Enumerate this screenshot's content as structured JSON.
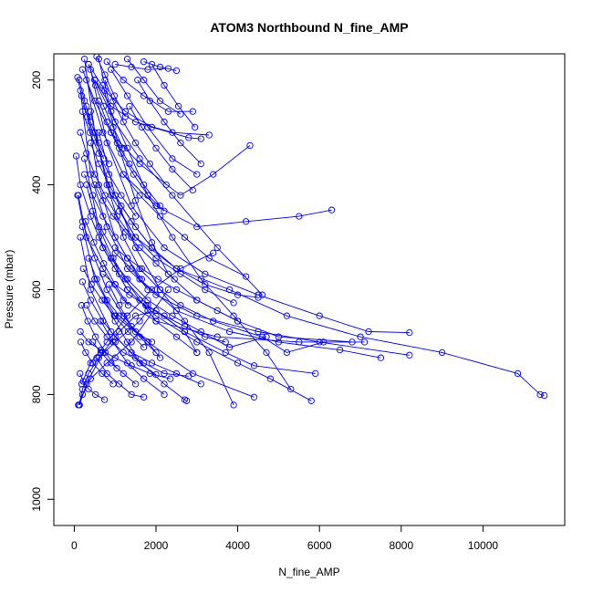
{
  "chart_data": {
    "type": "line",
    "title": "ATOM3 Northbound N_fine_AMP",
    "xlabel": "N_fine_AMP",
    "ylabel": "Pressure (mbar)",
    "xlim": [
      -500,
      12000
    ],
    "ylim": [
      1050,
      150
    ],
    "y_reversed": true,
    "x_ticks": [
      0,
      2000,
      4000,
      6000,
      8000,
      10000
    ],
    "y_ticks": [
      200,
      400,
      600,
      800,
      1000
    ],
    "grid": false,
    "legend": "none",
    "marker": "open-circle",
    "color": "#0000ff",
    "series": [
      {
        "x": [
          600,
          900,
          1300,
          1800,
          2400,
          3100,
          3900,
          4700,
          5300
        ],
        "y": [
          160,
          260,
          330,
          420,
          500,
          580,
          650,
          720,
          790
        ]
      },
      {
        "x": [
          200,
          500,
          900,
          1600,
          2600,
          3400,
          4300
        ],
        "y": [
          180,
          240,
          300,
          360,
          420,
          380,
          325
        ]
      },
      {
        "x": [
          300,
          700,
          1200,
          2000,
          3000,
          4200,
          5500,
          6300
        ],
        "y": [
          200,
          300,
          380,
          440,
          480,
          470,
          460,
          448
        ]
      },
      {
        "x": [
          250,
          500,
          900,
          1500,
          2500,
          3800,
          5200,
          7000,
          9000,
          10850,
          11400,
          11500
        ],
        "y": [
          160,
          300,
          420,
          500,
          560,
          600,
          650,
          690,
          720,
          760,
          800,
          802
        ]
      },
      {
        "x": [
          400,
          800,
          1400,
          2200,
          3200,
          4500,
          6000,
          7200,
          8200
        ],
        "y": [
          180,
          320,
          440,
          520,
          570,
          610,
          650,
          680,
          682
        ]
      },
      {
        "x": [
          150,
          400,
          800,
          1300,
          2000,
          3000,
          4500,
          6000,
          8200
        ],
        "y": [
          220,
          380,
          480,
          560,
          610,
          650,
          680,
          700,
          725
        ]
      },
      {
        "x": [
          300,
          600,
          1000,
          1600,
          2500,
          3800,
          5000,
          6500,
          7500
        ],
        "y": [
          250,
          400,
          500,
          580,
          640,
          680,
          700,
          715,
          730
        ]
      },
      {
        "x": [
          100,
          300,
          700,
          1200,
          2000,
          3500,
          5500,
          7100
        ],
        "y": [
          420,
          500,
          560,
          620,
          660,
          690,
          700,
          700
        ]
      },
      {
        "x": [
          500,
          900,
          1500,
          2400,
          3300
        ],
        "y": [
          200,
          250,
          280,
          300,
          305
        ]
      },
      {
        "x": [
          350,
          750,
          1250,
          1900,
          2800,
          3100
        ],
        "y": [
          170,
          220,
          260,
          290,
          310,
          312
        ]
      },
      {
        "x": [
          800,
          1200,
          1700,
          2300,
          2900
        ],
        "y": [
          165,
          200,
          230,
          260,
          260
        ]
      },
      {
        "x": [
          1000,
          1400,
          1800,
          2300
        ],
        "y": [
          170,
          175,
          180,
          178
        ]
      },
      {
        "x": [
          600,
          1000,
          1500,
          2100,
          2700,
          3300,
          3900
        ],
        "y": [
          300,
          420,
          520,
          600,
          660,
          720,
          820
        ]
      },
      {
        "x": [
          200,
          500,
          1000,
          1800,
          2900,
          4400
        ],
        "y": [
          480,
          580,
          650,
          700,
          760,
          805
        ]
      },
      {
        "x": [
          150,
          400,
          900,
          1500,
          2200,
          2700,
          2750
        ],
        "y": [
          500,
          600,
          680,
          730,
          780,
          810,
          812
        ]
      },
      {
        "x": [
          300,
          700,
          1300,
          2000,
          3000,
          4000,
          4800,
          5800
        ],
        "y": [
          400,
          520,
          600,
          650,
          700,
          740,
          770,
          812
        ]
      },
      {
        "x": [
          250,
          600,
          1100,
          1800,
          2700,
          3700,
          4400,
          5900
        ],
        "y": [
          350,
          480,
          570,
          630,
          680,
          720,
          745,
          760
        ]
      },
      {
        "x": [
          120,
          200,
          350,
          600,
          1000,
          1600,
          1800
        ],
        "y": [
          820,
          790,
          760,
          730,
          700,
          660,
          640
        ]
      },
      {
        "x": [
          100,
          200,
          400,
          800,
          1400,
          2300
        ],
        "y": [
          820,
          800,
          770,
          740,
          700,
          600
        ]
      },
      {
        "x": [
          180,
          400,
          800,
          1300,
          1900,
          2600,
          3400
        ],
        "y": [
          780,
          740,
          700,
          650,
          600,
          560,
          530
        ]
      },
      {
        "x": [
          130,
          300,
          700,
          1100,
          1500,
          2000,
          2700,
          3000
        ],
        "y": [
          820,
          780,
          720,
          680,
          650,
          640,
          680,
          720
        ]
      },
      {
        "x": [
          400,
          800,
          1200,
          1600,
          2100,
          2600,
          3400,
          4600,
          5200,
          6100
        ],
        "y": [
          260,
          400,
          500,
          560,
          600,
          630,
          660,
          690,
          720,
          700
        ]
      },
      {
        "x": [
          700,
          1100,
          1500,
          1900,
          2300,
          3000,
          4000,
          5000,
          6800
        ],
        "y": [
          210,
          330,
          430,
          510,
          570,
          620,
          660,
          690,
          700
        ]
      },
      {
        "x": [
          500,
          1000,
          1600,
          2400,
          3500,
          4600
        ],
        "y": [
          200,
          280,
          350,
          420,
          520,
          610
        ]
      },
      {
        "x": [
          900,
          1300,
          1800,
          2400,
          3000
        ],
        "y": [
          180,
          230,
          290,
          350,
          380
        ]
      },
      {
        "x": [
          1300,
          1700,
          2100,
          2600
        ],
        "y": [
          160,
          200,
          240,
          265
        ]
      },
      {
        "x": [
          1700,
          2100,
          2500
        ],
        "y": [
          165,
          175,
          182
        ]
      },
      {
        "x": [
          50,
          150,
          400,
          700,
          1000,
          1300
        ],
        "y": [
          345,
          400,
          460,
          520,
          560,
          600
        ]
      },
      {
        "x": [
          80,
          200,
          500,
          800,
          1200,
          1600,
          2000
        ],
        "y": [
          420,
          470,
          540,
          600,
          650,
          690,
          720
        ]
      },
      {
        "x": [
          200,
          400,
          700,
          1000,
          1400,
          1900,
          2500,
          3100
        ],
        "y": [
          585,
          620,
          660,
          690,
          720,
          740,
          760,
          780
        ]
      },
      {
        "x": [
          300,
          500,
          800,
          1200,
          1700,
          2200,
          2800
        ],
        "y": [
          630,
          660,
          690,
          720,
          740,
          760,
          765
        ]
      },
      {
        "x": [
          600,
          900,
          1300,
          1800,
          2400,
          3100,
          3800,
          4700
        ],
        "y": [
          500,
          540,
          580,
          620,
          650,
          680,
          710,
          690
        ]
      },
      {
        "x": [
          1000,
          1400,
          1900,
          2500,
          3200,
          4000,
          4500
        ],
        "y": [
          420,
          470,
          520,
          560,
          590,
          610,
          615
        ]
      },
      {
        "x": [
          1200,
          1600,
          2100,
          2700,
          3300,
          4200
        ],
        "y": [
          380,
          420,
          460,
          500,
          540,
          575
        ]
      },
      {
        "x": [
          1100,
          1500,
          2000,
          2600,
          3200,
          3900
        ],
        "y": [
          450,
          500,
          540,
          570,
          600,
          625
        ]
      },
      {
        "x": [
          450,
          650,
          900,
          1200,
          1500
        ],
        "y": [
          700,
          720,
          740,
          760,
          780
        ]
      },
      {
        "x": [
          550,
          800,
          1100,
          1400,
          1700
        ],
        "y": [
          730,
          760,
          780,
          800,
          805
        ]
      },
      {
        "x": [
          650,
          950,
          1300,
          1700,
          2200
        ],
        "y": [
          660,
          700,
          740,
          770,
          800
        ]
      },
      {
        "x": [
          750,
          1000,
          1300,
          1600,
          2000
        ],
        "y": [
          620,
          660,
          700,
          740,
          762
        ]
      },
      {
        "x": [
          850,
          1100,
          1400,
          1800,
          2100
        ],
        "y": [
          590,
          630,
          670,
          700,
          730
        ]
      },
      {
        "x": [
          950,
          1250,
          1600,
          2000,
          2500,
          3000
        ],
        "y": [
          540,
          580,
          620,
          660,
          690,
          720
        ]
      },
      {
        "x": [
          350,
          550,
          800,
          1100,
          1500,
          1900
        ],
        "y": [
          540,
          580,
          620,
          650,
          680,
          700
        ]
      },
      {
        "x": [
          450,
          700,
          1000,
          1400,
          1800
        ],
        "y": [
          450,
          490,
          530,
          560,
          600
        ]
      },
      {
        "x": [
          250,
          450,
          700,
          1000,
          1300,
          1650
        ],
        "y": [
          380,
          420,
          460,
          500,
          540,
          580
        ]
      },
      {
        "x": [
          150,
          300,
          500,
          750,
          1050,
          1400
        ],
        "y": [
          300,
          340,
          380,
          420,
          460,
          500
        ]
      },
      {
        "x": [
          600,
          800,
          1050,
          1350,
          1700,
          2100
        ],
        "y": [
          240,
          280,
          320,
          360,
          400,
          440
        ]
      },
      {
        "x": [
          750,
          950,
          1200,
          1500,
          1850,
          2250
        ],
        "y": [
          200,
          240,
          280,
          320,
          360,
          400
        ]
      },
      {
        "x": [
          120,
          250,
          400,
          600,
          850
        ],
        "y": [
          200,
          240,
          280,
          320,
          360
        ]
      },
      {
        "x": [
          80,
          180,
          320,
          500,
          720
        ],
        "y": [
          195,
          230,
          270,
          310,
          350
        ]
      },
      {
        "x": [
          350,
          520,
          720,
          950,
          1200
        ],
        "y": [
          170,
          210,
          250,
          290,
          330
        ]
      },
      {
        "x": [
          550,
          750,
          980,
          1250
        ],
        "y": [
          155,
          190,
          230,
          270
        ]
      },
      {
        "x": [
          900,
          1150,
          1450,
          1800,
          2200
        ],
        "y": [
          300,
          340,
          380,
          420,
          450
        ]
      },
      {
        "x": [
          1350,
          1650,
          2000,
          2400,
          2900
        ],
        "y": [
          250,
          290,
          330,
          370,
          410
        ]
      },
      {
        "x": [
          1550,
          1850,
          2200,
          2600,
          3100
        ],
        "y": [
          200,
          240,
          280,
          320,
          360
        ]
      },
      {
        "x": [
          1900,
          2200,
          2550,
          2950
        ],
        "y": [
          170,
          210,
          250,
          290
        ]
      },
      {
        "x": [
          150,
          350,
          650,
          1000,
          1400,
          1850,
          2350
        ],
        "y": [
          680,
          700,
          715,
          730,
          745,
          760,
          770
        ]
      },
      {
        "x": [
          700,
          1000,
          1350,
          1750,
          2200,
          2700,
          3200,
          3700
        ],
        "y": [
          570,
          590,
          610,
          630,
          650,
          670,
          690,
          700
        ]
      },
      {
        "x": [
          1000,
          1300,
          1650,
          2050,
          2500,
          3000,
          3500,
          4000
        ],
        "y": [
          520,
          540,
          560,
          580,
          600,
          620,
          640,
          660
        ]
      },
      {
        "x": [
          400,
          600,
          850,
          1150,
          1500,
          1900
        ],
        "y": [
          320,
          360,
          400,
          440,
          480,
          520
        ]
      },
      {
        "x": [
          200,
          380,
          600,
          850,
          1150,
          1500
        ],
        "y": [
          260,
          300,
          340,
          380,
          420,
          460
        ]
      },
      {
        "x": [
          500,
          700,
          950,
          1250,
          1600,
          2000,
          2450
        ],
        "y": [
          400,
          430,
          460,
          490,
          520,
          550,
          580
        ]
      },
      {
        "x": [
          280,
          480,
          720,
          1000,
          1320
        ],
        "y": [
          470,
          510,
          550,
          590,
          630
        ]
      },
      {
        "x": [
          220,
          420,
          680,
          980,
          1320,
          1700
        ],
        "y": [
          560,
          590,
          620,
          650,
          680,
          710
        ]
      },
      {
        "x": [
          180,
          330,
          520,
          760,
          1040
        ],
        "y": [
          630,
          660,
          690,
          720,
          750
        ]
      },
      {
        "x": [
          160,
          280,
          450,
          680,
          950
        ],
        "y": [
          700,
          720,
          740,
          760,
          780
        ]
      },
      {
        "x": [
          140,
          220,
          350,
          520,
          740
        ],
        "y": [
          760,
          775,
          790,
          800,
          810
        ]
      }
    ]
  }
}
